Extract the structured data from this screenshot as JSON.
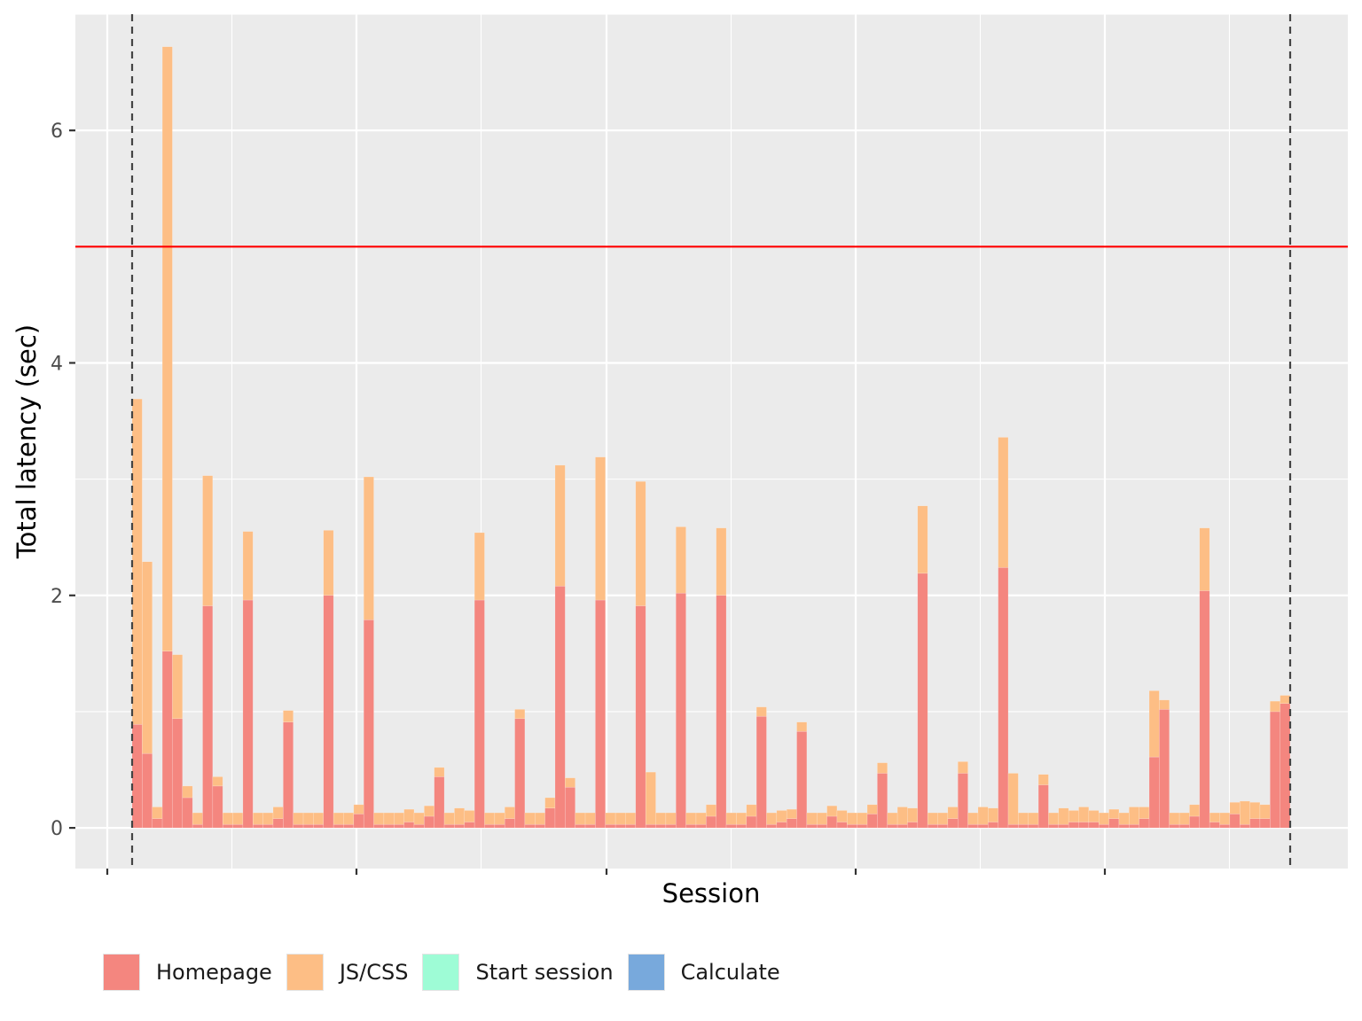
{
  "chart_data": {
    "type": "bar",
    "stacked": true,
    "xlabel": "Session",
    "ylabel": "Total latency (sec)",
    "ylim": [
      -0.35,
      7
    ],
    "yticks": [
      0,
      2,
      4,
      6
    ],
    "grid": true,
    "background": "#ebebeb",
    "threshold": {
      "y": 5,
      "color": "#ff0000"
    },
    "vlines": {
      "style": "dashed",
      "color": "#444444",
      "at": [
        "first session",
        "last session"
      ]
    },
    "legend_position": "bottom",
    "series": [
      {
        "name": "Homepage",
        "color": "#f4867f",
        "values": [
          0.89,
          0.64,
          0.08,
          1.52,
          0.94,
          0.26,
          0.03,
          1.91,
          0.36,
          0.03,
          0.03,
          1.96,
          0.03,
          0.03,
          0.08,
          0.91,
          0.03,
          0.03,
          0.03,
          2.0,
          0.03,
          0.03,
          0.12,
          1.79,
          0.03,
          0.03,
          0.03,
          0.05,
          0.03,
          0.1,
          0.44,
          0.03,
          0.03,
          0.05,
          1.96,
          0.03,
          0.03,
          0.08,
          0.94,
          0.03,
          0.03,
          0.17,
          2.08,
          0.35,
          0.03,
          0.03,
          1.96,
          0.03,
          0.03,
          0.03,
          1.91,
          0.03,
          0.03,
          0.03,
          2.02,
          0.03,
          0.03,
          0.1,
          2.0,
          0.03,
          0.03,
          0.1,
          0.96,
          0.03,
          0.05,
          0.08,
          0.83,
          0.03,
          0.03,
          0.1,
          0.05,
          0.03,
          0.03,
          0.12,
          0.47,
          0.03,
          0.03,
          0.05,
          2.19,
          0.03,
          0.03,
          0.08,
          0.47,
          0.03,
          0.03,
          0.05,
          2.24,
          0.03,
          0.03,
          0.03,
          0.37,
          0.03,
          0.03,
          0.05,
          0.05,
          0.05,
          0.03,
          0.08,
          0.03,
          0.03,
          0.08,
          0.61,
          1.02,
          0.03,
          0.03,
          0.1,
          2.04,
          0.05,
          0.03,
          0.12,
          0.03,
          0.08,
          0.08,
          1.0,
          1.07
        ]
      },
      {
        "name": "JS/CSS",
        "color": "#fdbe85",
        "values": [
          2.8,
          1.65,
          0.1,
          5.2,
          0.55,
          0.1,
          0.1,
          1.12,
          0.08,
          0.1,
          0.1,
          0.59,
          0.1,
          0.1,
          0.1,
          0.1,
          0.1,
          0.1,
          0.1,
          0.56,
          0.1,
          0.1,
          0.08,
          1.23,
          0.1,
          0.1,
          0.1,
          0.11,
          0.1,
          0.09,
          0.08,
          0.1,
          0.14,
          0.1,
          0.58,
          0.1,
          0.1,
          0.1,
          0.08,
          0.1,
          0.1,
          0.09,
          1.04,
          0.08,
          0.1,
          0.1,
          1.23,
          0.1,
          0.1,
          0.1,
          1.07,
          0.45,
          0.1,
          0.1,
          0.57,
          0.1,
          0.1,
          0.1,
          0.58,
          0.1,
          0.1,
          0.1,
          0.08,
          0.1,
          0.1,
          0.08,
          0.08,
          0.1,
          0.1,
          0.09,
          0.1,
          0.1,
          0.1,
          0.08,
          0.09,
          0.1,
          0.15,
          0.12,
          0.58,
          0.1,
          0.1,
          0.1,
          0.1,
          0.1,
          0.15,
          0.12,
          1.12,
          0.44,
          0.1,
          0.1,
          0.09,
          0.1,
          0.14,
          0.1,
          0.13,
          0.1,
          0.1,
          0.08,
          0.1,
          0.15,
          0.1,
          0.57,
          0.08,
          0.1,
          0.1,
          0.1,
          0.54,
          0.08,
          0.1,
          0.1,
          0.2,
          0.14,
          0.12,
          0.09,
          0.07
        ]
      },
      {
        "name": "Start session",
        "color": "#9efcd6",
        "values": []
      },
      {
        "name": "Calculate",
        "color": "#78a9dc",
        "values": []
      }
    ]
  }
}
